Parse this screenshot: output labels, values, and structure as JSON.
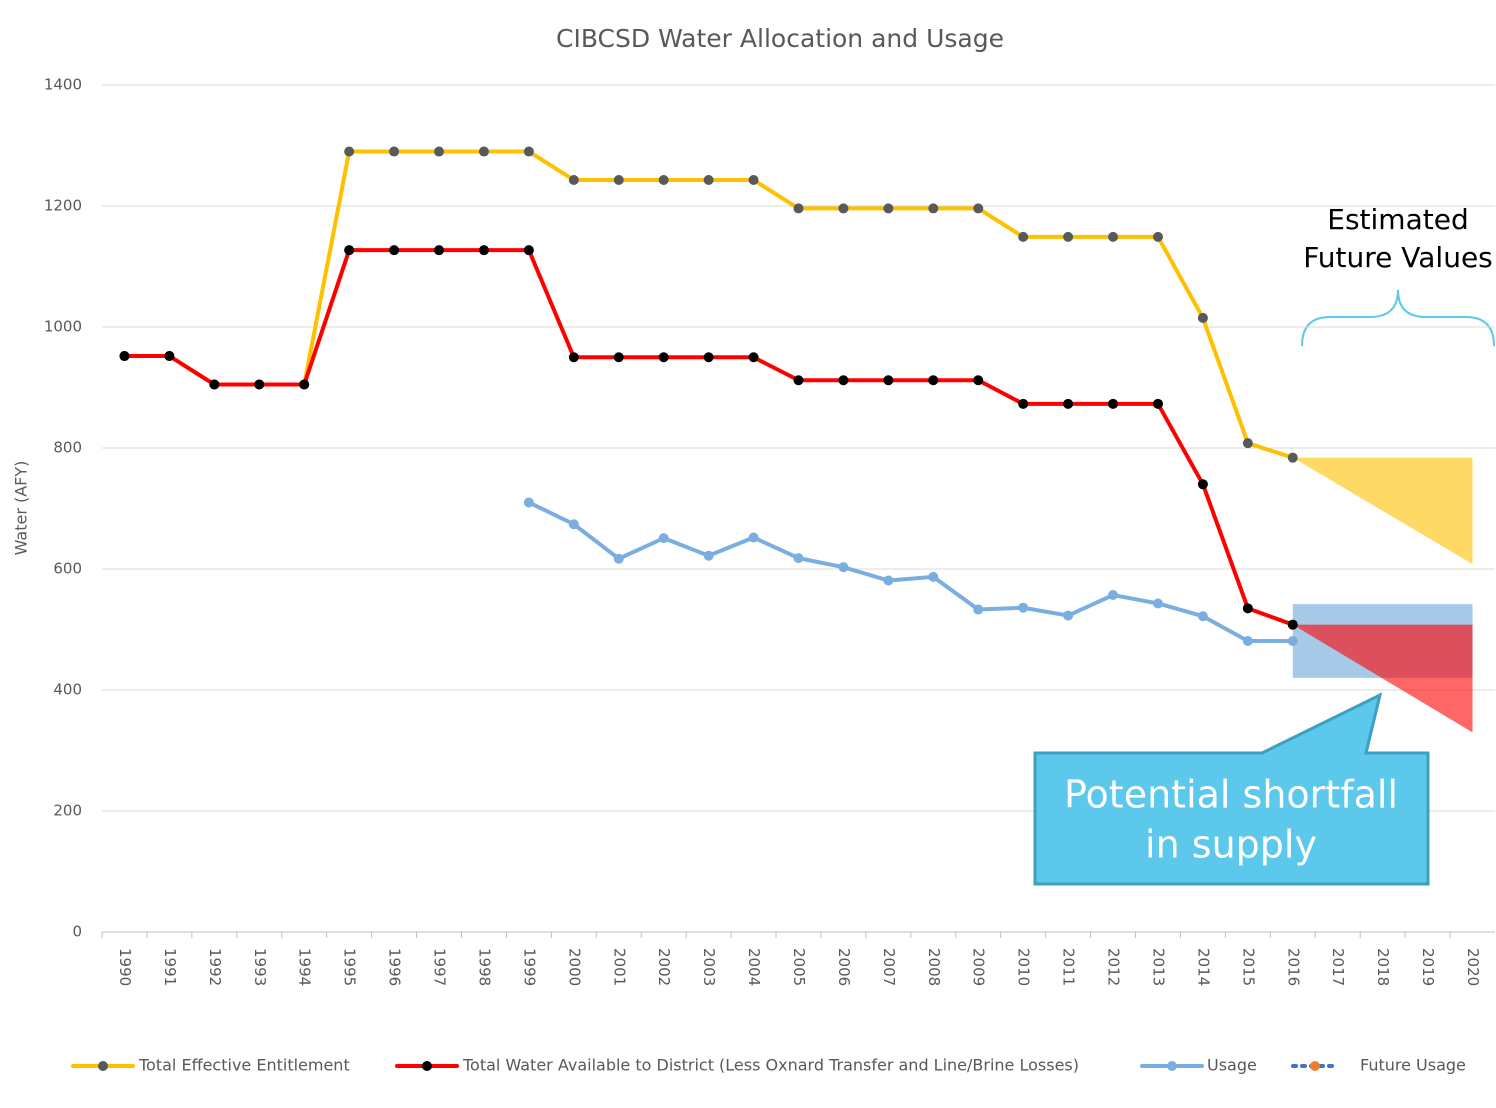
{
  "chart_data": {
    "type": "line",
    "title": "CIBCSD Water Allocation and Usage",
    "y_label": "Water (AFY)",
    "categories": [
      "1990",
      "1991",
      "1992",
      "1993",
      "1994",
      "1995",
      "1996",
      "1997",
      "1998",
      "1999",
      "2000",
      "2001",
      "2002",
      "2003",
      "2004",
      "2005",
      "2006",
      "2007",
      "2008",
      "2009",
      "2010",
      "2011",
      "2012",
      "2013",
      "2014",
      "2015",
      "2016",
      "2017",
      "2018",
      "2019",
      "2020"
    ],
    "series": [
      {
        "name": "Total Effective Entitlement",
        "color": "#ffc000",
        "marker_color": "#595959",
        "values": [
          952,
          952,
          905,
          905,
          905,
          1290,
          1290,
          1290,
          1290,
          1290,
          1243,
          1243,
          1243,
          1243,
          1243,
          1196,
          1196,
          1196,
          1196,
          1196,
          1149,
          1149,
          1149,
          1149,
          1015,
          808,
          784,
          null,
          null,
          null,
          null
        ]
      },
      {
        "name": "Total Water Available to District (Less Oxnard Transfer and Line/Brine Losses)",
        "color": "#ff0000",
        "marker_color": "#000000",
        "values": [
          952,
          952,
          905,
          905,
          905,
          1127,
          1127,
          1127,
          1127,
          1127,
          950,
          950,
          950,
          950,
          950,
          912,
          912,
          912,
          912,
          912,
          873,
          873,
          873,
          873,
          740,
          535,
          508,
          null,
          null,
          null,
          null
        ]
      },
      {
        "name": "Usage",
        "color": "#7aaee0",
        "marker_color": "#7aaee0",
        "values": [
          null,
          null,
          null,
          null,
          null,
          null,
          null,
          null,
          null,
          710,
          674,
          617,
          651,
          622,
          652,
          618,
          603,
          581,
          587,
          533,
          536,
          523,
          557,
          543,
          522,
          481,
          481,
          null,
          null,
          null,
          null
        ]
      },
      {
        "name": "Future Usage",
        "color": "#4472c4",
        "marker_color": "#ed7d31",
        "dashed": true,
        "values": [
          null,
          null,
          null,
          null,
          null,
          null,
          null,
          null,
          null,
          null,
          null,
          null,
          null,
          null,
          null,
          null,
          null,
          null,
          null,
          null,
          null,
          null,
          null,
          null,
          null,
          null,
          null,
          null,
          null,
          null,
          null
        ]
      }
    ],
    "projections": [
      {
        "color": "#ffd966",
        "opacity": 1,
        "x": [
          "2016",
          "2020"
        ],
        "upper": [
          784,
          784
        ],
        "lower": [
          784,
          608
        ]
      },
      {
        "color": "#9dc3e6",
        "opacity": 0.9,
        "x": [
          "2016",
          "2020"
        ],
        "upper": [
          542,
          542
        ],
        "lower": [
          420,
          420
        ]
      },
      {
        "color": "#ff0000",
        "opacity": 0.6,
        "x": [
          "2016",
          "2020"
        ],
        "upper": [
          508,
          508
        ],
        "lower": [
          508,
          330
        ]
      }
    ],
    "ylim": [
      0,
      1400
    ],
    "yticks": [
      0,
      200,
      400,
      600,
      800,
      1000,
      1200,
      1400
    ],
    "grid": true,
    "legend": "bottom",
    "annotations": [
      "Estimated",
      "Future Values",
      "Potential shortfall",
      "in supply"
    ]
  }
}
